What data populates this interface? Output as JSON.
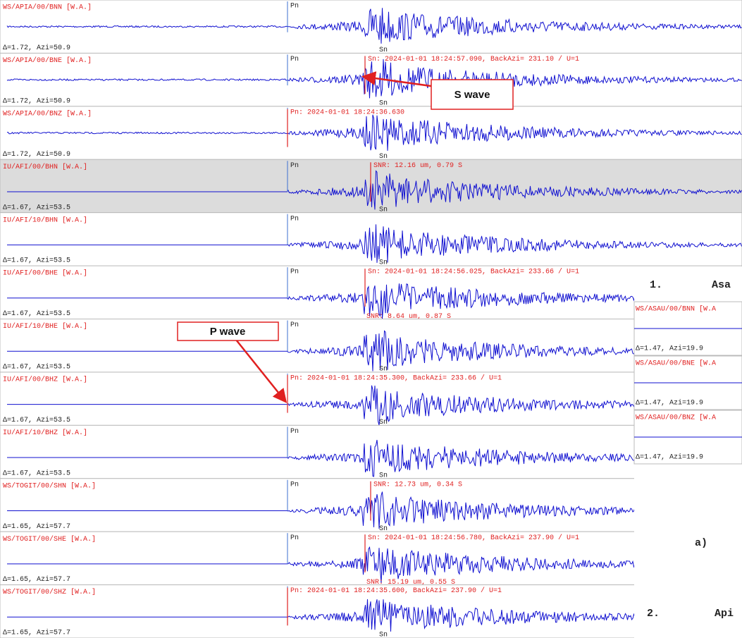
{
  "traces": [
    {
      "station": "WS/APIA/00/BNN [W.A.]",
      "dist_azi": "Δ=1.72, Azi=50.9",
      "phase_p": "Pn",
      "phase_s": "Sn"
    },
    {
      "station": "WS/APIA/00/BNE [W.A.]",
      "dist_azi": "Δ=1.72, Azi=50.9",
      "phase_p": "Pn",
      "phase_s": "Sn",
      "pick": "Sn: 2024-01-01 18:24:57.090, BackAzi= 231.10 / U=1"
    },
    {
      "station": "WS/APIA/00/BNZ [W.A.]",
      "dist_azi": "Δ=1.72, Azi=50.9",
      "phase_s": "Sn",
      "pick": "Pn: 2024-01-01 18:24:36.630"
    },
    {
      "station": "IU/AFI/00/BHN [W.A.]",
      "dist_azi": "Δ=1.67, Azi=53.5",
      "phase_p": "Pn",
      "phase_s": "Sn",
      "snr_top": "SNR: 12.16 um, 0.79  S"
    },
    {
      "station": "IU/AFI/10/BHN [W.A.]",
      "dist_azi": "Δ=1.67, Azi=53.5",
      "phase_p": "Pn",
      "phase_s": "Sn"
    },
    {
      "station": "IU/AFI/00/BHE [W.A.]",
      "dist_azi": "Δ=1.67, Azi=53.5",
      "phase_p": "Pn",
      "pick": "Sn: 2024-01-01 18:24:56.025, BackAzi= 233.66 / U=1",
      "snr_bottom": "SNR: 8.64 um, 0.87  S"
    },
    {
      "station": "IU/AFI/10/BHE [W.A.]",
      "dist_azi": "Δ=1.67, Azi=53.5",
      "phase_p": "Pn",
      "phase_s": "Sn"
    },
    {
      "station": "IU/AFI/00/BHZ [W.A.]",
      "dist_azi": "Δ=1.67, Azi=53.5",
      "phase_s": "Sn",
      "pick": "Pn: 2024-01-01 18:24:35.300, BackAzi= 233.66 / U=1"
    },
    {
      "station": "IU/AFI/10/BHZ [W.A.]",
      "dist_azi": "Δ=1.67, Azi=53.5",
      "phase_p": "Pn",
      "phase_s": "Sn"
    },
    {
      "station": "WS/TOGIT/00/SHN [W.A.]",
      "dist_azi": "Δ=1.65, Azi=57.7",
      "phase_p": "Pn",
      "phase_s": "Sn",
      "snr_top": "SNR: 12.73 um, 0.34  S"
    },
    {
      "station": "WS/TOGIT/00/SHE [W.A.]",
      "dist_azi": "Δ=1.65, Azi=57.7",
      "phase_p": "Pn",
      "pick": "Sn: 2024-01-01 18:24:56.780, BackAzi= 237.90 / U=1",
      "snr_bottom": "SNR: 15.19 um, 0.55  S"
    },
    {
      "station": "WS/TOGIT/00/SHZ [W.A.]",
      "dist_azi": "Δ=1.65, Azi=57.7",
      "phase_s": "Sn",
      "pick": "Pn: 2024-01-01 18:24:35.600, BackAzi= 237.90 / U=1"
    }
  ],
  "callouts": {
    "s_wave": "S wave",
    "p_wave": "P wave"
  },
  "inset": {
    "heading_1_number": "1.",
    "heading_1_text": "Asa",
    "traces": [
      {
        "station": "WS/ASAU/00/BNN [W.A",
        "dist_azi": "Δ=1.47, Azi=19.9"
      },
      {
        "station": "WS/ASAU/00/BNE [W.A",
        "dist_azi": "Δ=1.47, Azi=19.9"
      },
      {
        "station": "WS/ASAU/00/BNZ [W.A",
        "dist_azi": "Δ=1.47, Azi=19.9"
      }
    ],
    "panel_label": "a)",
    "heading_2_number": "2.",
    "heading_2_text": "Api"
  }
}
